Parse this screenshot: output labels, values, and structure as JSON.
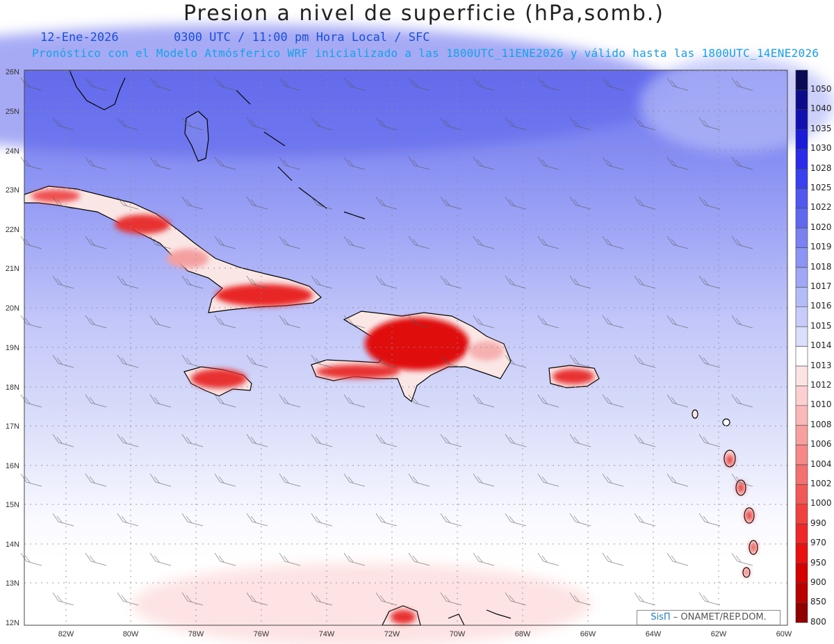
{
  "header": {
    "title": "Presion a nivel de superficie (hPa,somb.)",
    "date": "12-Ene-2026",
    "valid_time": "0300 UTC / 11:00 pm Hora Local / SFC",
    "forecast_note": "Pronóstico con el Modelo Atmósferico WRF inicializado a las 1800UTC_11ENE2026 y válido hasta las  1800UTC_14ENE2026"
  },
  "axes": {
    "lat_labels": [
      "26N",
      "25N",
      "24N",
      "23N",
      "22N",
      "21N",
      "20N",
      "19N",
      "18N",
      "17N",
      "16N",
      "15N",
      "14N",
      "13N",
      "12N"
    ],
    "lon_labels": [
      "82W",
      "80W",
      "78W",
      "76W",
      "74W",
      "72W",
      "70W",
      "68W",
      "66W",
      "64W",
      "62W",
      "60W"
    ]
  },
  "colorbar": {
    "levels": [
      "1050",
      "1040",
      "1035",
      "1030",
      "1028",
      "1025",
      "1022",
      "1020",
      "1019",
      "1018",
      "1017",
      "1016",
      "1015",
      "1014",
      "1013",
      "1012",
      "1010",
      "1008",
      "1006",
      "1004",
      "1002",
      "1000",
      "990",
      "970",
      "950",
      "900",
      "850",
      "800"
    ],
    "colors": [
      "#0a0a55",
      "#0c0c8a",
      "#1010b0",
      "#1a1ad8",
      "#2a2ae8",
      "#3a40ee",
      "#5058f0",
      "#6068f0",
      "#7a82f2",
      "#8c94f4",
      "#a0a8f6",
      "#b4bcf8",
      "#c8ccfa",
      "#dcdffc",
      "#ffffff",
      "#fde4e4",
      "#fcd0d0",
      "#fab8b8",
      "#f8a0a0",
      "#f68888",
      "#f47070",
      "#f25858",
      "#f04040",
      "#ee2828",
      "#e81010",
      "#d40000",
      "#b80000",
      "#900000"
    ]
  },
  "credit": {
    "brand": "SisΠ",
    "org": " – ONAMET/REP.DOM."
  }
}
